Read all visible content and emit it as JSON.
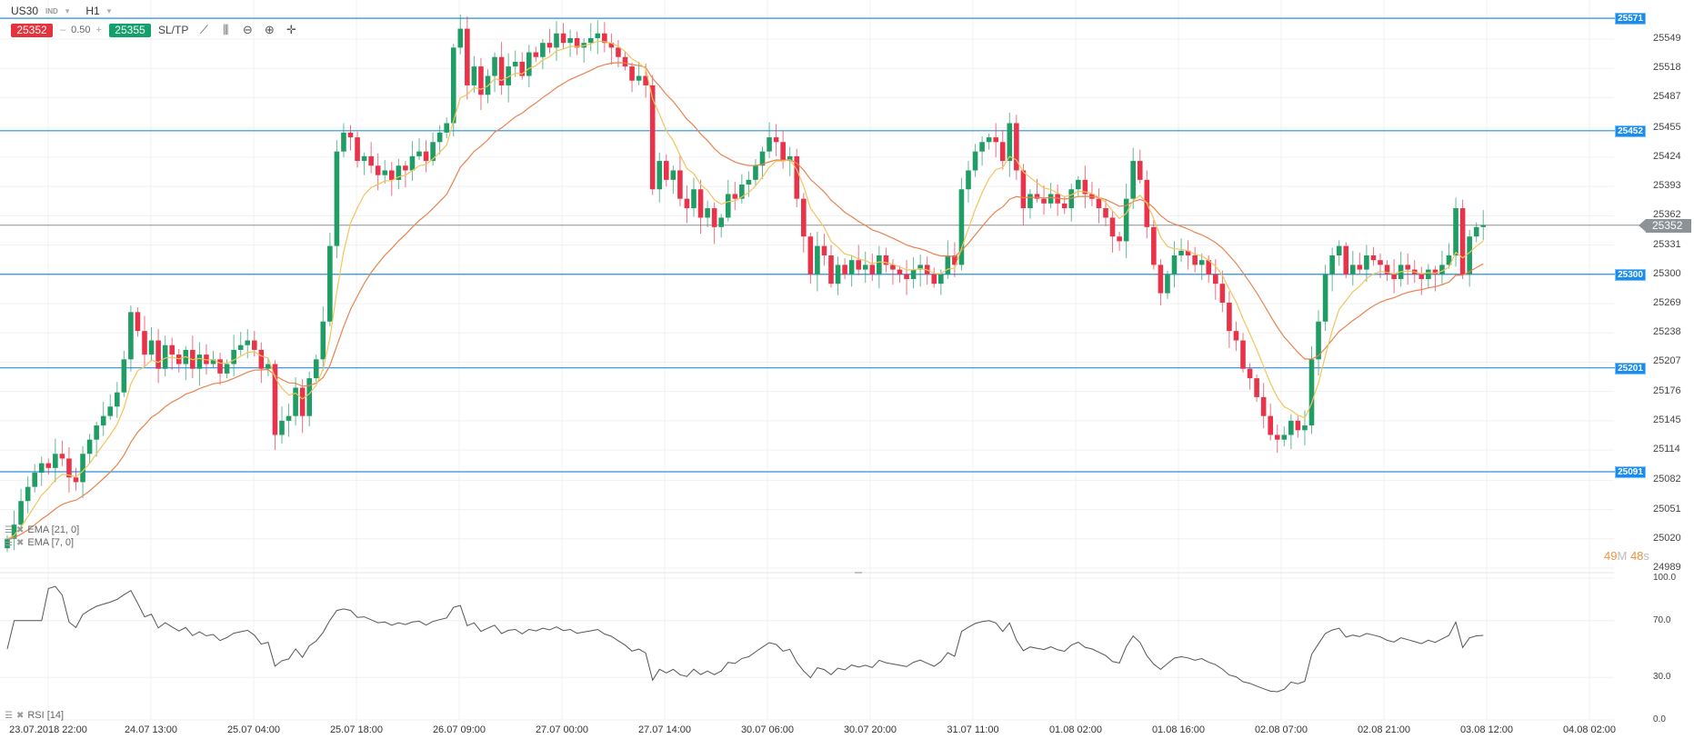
{
  "header": {
    "symbol": "US30",
    "symbol_type": "IND",
    "timeframe": "H1"
  },
  "trade": {
    "sell_price": "25352",
    "lot_minus": "–",
    "lot": "0.50",
    "lot_plus": "+",
    "buy_price": "25355",
    "sltp": "SL/TP"
  },
  "toolbar_icons": [
    "line-chart-icon",
    "candles-icon",
    "zoom-out-icon",
    "zoom-in-icon",
    "crosshair-icon"
  ],
  "price_axis": [
    "25549",
    "25518",
    "25487",
    "25455",
    "25424",
    "25393",
    "25362",
    "25331",
    "25300",
    "25269",
    "25238",
    "25207",
    "25176",
    "25145",
    "25114",
    "25082",
    "25051",
    "25020",
    "24989"
  ],
  "levels": [
    {
      "value": 25571,
      "label": "25571"
    },
    {
      "value": 25452,
      "label": "25452"
    },
    {
      "value": 25300,
      "label": "25300"
    },
    {
      "value": 25201,
      "label": "25201"
    },
    {
      "value": 25091,
      "label": "25091"
    }
  ],
  "current_price": {
    "value": 25352,
    "label": "25352"
  },
  "countdown": {
    "min": "49",
    "m": "M",
    "sec": "48",
    "s": "s"
  },
  "indicators": {
    "ema21": "EMA [21, 0]",
    "ema7": "EMA [7, 0]",
    "rsi": "RSI [14]"
  },
  "rsi_axis": [
    "100.0",
    "70.0",
    "30.0",
    "0.0"
  ],
  "x_axis": [
    "23.07.2018 22:00",
    "24.07 13:00",
    "25.07 04:00",
    "25.07 18:00",
    "26.07 09:00",
    "27.07 00:00",
    "27.07 14:00",
    "30.07 06:00",
    "30.07 20:00",
    "31.07 11:00",
    "01.08 02:00",
    "01.08 16:00",
    "02.08 07:00",
    "02.08 21:00",
    "03.08 12:00",
    "04.08 02:00"
  ],
  "colors": {
    "up": "#1f9d65",
    "down": "#e8334a",
    "level": "#2a8fe0",
    "ema7": "#f2c55c",
    "ema21": "#e8834f",
    "rsi": "#555555"
  },
  "chart_data": {
    "type": "candlestick",
    "timeframe": "H1",
    "ylim": [
      24989,
      25580
    ],
    "close": [
      25020,
      25035,
      25060,
      25075,
      25090,
      25100,
      25095,
      25110,
      25105,
      25085,
      25080,
      25110,
      25125,
      25140,
      25150,
      25160,
      25175,
      25210,
      25260,
      25240,
      25215,
      25230,
      25200,
      25225,
      25215,
      25205,
      25220,
      25200,
      25215,
      25205,
      25210,
      25195,
      25205,
      25220,
      25225,
      25230,
      25220,
      25200,
      25205,
      25130,
      25145,
      25150,
      25180,
      25150,
      25190,
      25210,
      25250,
      25330,
      25430,
      25450,
      25445,
      25420,
      25425,
      25415,
      25405,
      25410,
      25400,
      25415,
      25410,
      25425,
      25430,
      25420,
      25440,
      25450,
      25460,
      25540,
      25560,
      25500,
      25520,
      25490,
      25510,
      25530,
      25500,
      25520,
      25525,
      25510,
      25535,
      25530,
      25545,
      25540,
      25555,
      25545,
      25550,
      25540,
      25545,
      25550,
      25555,
      25545,
      25540,
      25530,
      25520,
      25505,
      25510,
      25500,
      25390,
      25420,
      25400,
      25410,
      25380,
      25370,
      25390,
      25360,
      25370,
      25350,
      25360,
      25385,
      25380,
      25395,
      25400,
      25415,
      25430,
      25445,
      25440,
      25420,
      25425,
      25380,
      25340,
      25300,
      25330,
      25320,
      25290,
      25310,
      25300,
      25315,
      25305,
      25310,
      25300,
      25320,
      25310,
      25305,
      25300,
      25295,
      25305,
      25310,
      25300,
      25290,
      25300,
      25320,
      25310,
      25390,
      25410,
      25430,
      25440,
      25445,
      25440,
      25420,
      25460,
      25410,
      25370,
      25385,
      25380,
      25375,
      25385,
      25375,
      25370,
      25390,
      25400,
      25385,
      25380,
      25370,
      25360,
      25340,
      25335,
      25380,
      25420,
      25400,
      25350,
      25310,
      25280,
      25300,
      25320,
      25325,
      25320,
      25310,
      25315,
      25300,
      25290,
      25270,
      25240,
      25230,
      25200,
      25190,
      25170,
      25150,
      25130,
      25125,
      25130,
      25145,
      25135,
      25140,
      25210,
      25250,
      25300,
      25320,
      25330,
      25300,
      25310,
      25305,
      25320,
      25315,
      25310,
      25300,
      25295,
      25310,
      25305,
      25300,
      25295,
      25305,
      25300,
      25310,
      25320,
      25370,
      25300,
      25340,
      25350,
      25352
    ]
  }
}
